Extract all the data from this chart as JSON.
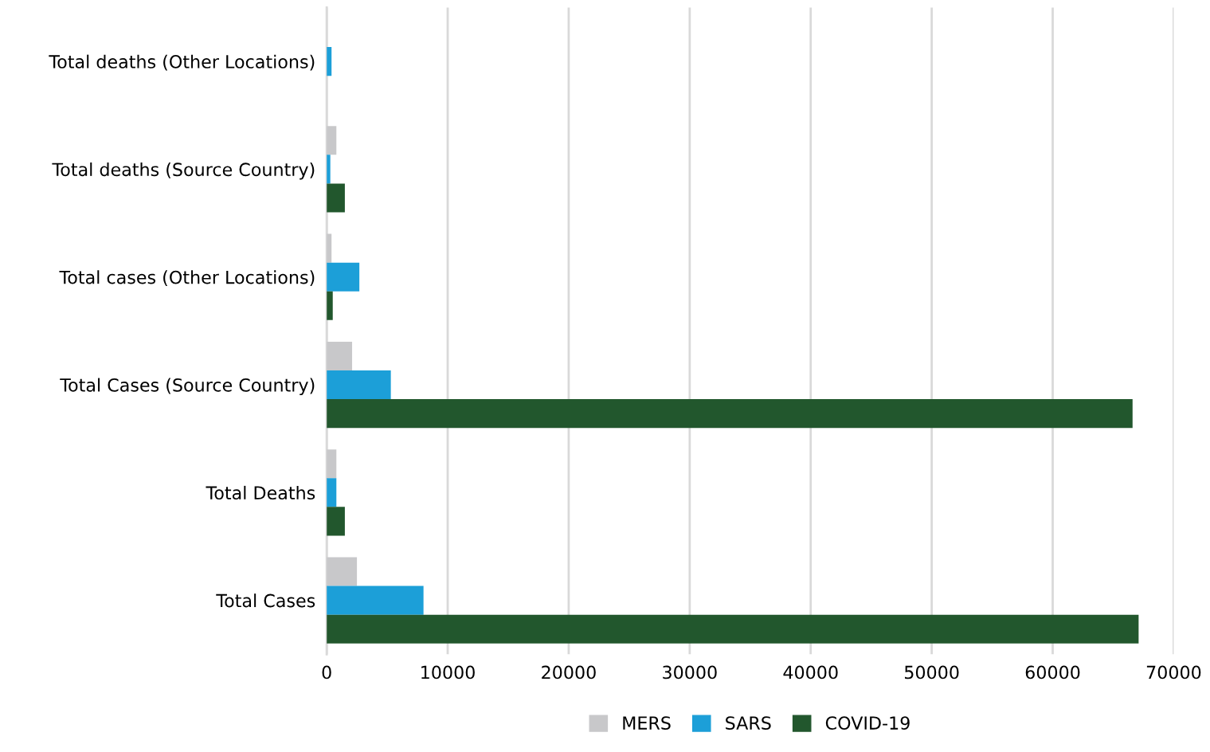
{
  "chart_data": {
    "type": "bar",
    "orientation": "horizontal",
    "categories": [
      "Total deaths (Other Locations)",
      "Total deaths (Source Country)",
      "Total cases (Other Locations)",
      "Total Cases (Source Country)",
      "Total Deaths",
      "Total Cases"
    ],
    "series": [
      {
        "name": "MERS",
        "color": "#c8c8ca",
        "values": [
          null,
          800,
          400,
          2100,
          800,
          2500
        ]
      },
      {
        "name": "SARS",
        "color": "#1c9fd8",
        "values": [
          400,
          300,
          2700,
          5300,
          800,
          8000
        ]
      },
      {
        "name": "COVID-19",
        "color": "#22572d",
        "values": [
          null,
          1500,
          500,
          66600,
          1500,
          67100
        ]
      }
    ],
    "xlim": [
      0,
      70000
    ],
    "xticks": [
      0,
      10000,
      20000,
      30000,
      40000,
      50000,
      60000,
      70000
    ],
    "grid": "x",
    "legend": "bottom"
  }
}
